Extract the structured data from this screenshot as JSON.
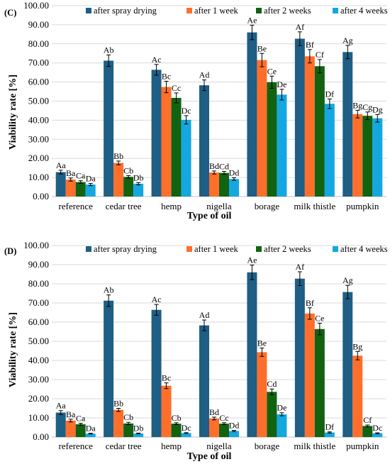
{
  "colors": {
    "after spray drying": "#1f5e85",
    "after 1 week": "#ff6f2b",
    "after 2 weeks": "#116311",
    "after 4 weeks": "#15a7e0"
  },
  "chart_data": [
    {
      "type": "bar",
      "panel": "(C)",
      "xlabel": "Type of oil",
      "ylabel": "Viability rate [%]",
      "ylim": [
        0,
        100
      ],
      "yticks": [
        "0.00",
        "10.00",
        "20.00",
        "30.00",
        "40.00",
        "50.00",
        "60.00",
        "70.00",
        "80.00",
        "90.00",
        "100.00"
      ],
      "grid": true,
      "legend": "top",
      "categories": [
        "reference",
        "cedar tree",
        "hemp",
        "nigella",
        "borage",
        "milk thistle",
        "pumpkin"
      ],
      "series": [
        {
          "name": "after spray drying",
          "values": [
            12.8,
            71.2,
            66.4,
            58.3,
            86.0,
            82.7,
            75.7
          ],
          "errors": [
            1.0,
            3.0,
            2.8,
            2.8,
            3.8,
            3.6,
            3.5
          ],
          "labels": [
            "Aa",
            "Ab",
            "Ac",
            "Ad",
            "Ae",
            "Af",
            "Ag"
          ]
        },
        {
          "name": "after 1 week",
          "values": [
            8.9,
            17.6,
            57.4,
            12.6,
            71.5,
            73.5,
            43.2
          ],
          "errors": [
            0.8,
            1.0,
            3.0,
            0.8,
            3.5,
            3.5,
            2.0
          ],
          "labels": [
            "Ba",
            "Bb",
            "Bc",
            "Bd",
            "Be",
            "Bf",
            "Bg"
          ]
        },
        {
          "name": "after 2 weeks",
          "values": [
            7.6,
            10.3,
            51.7,
            12.4,
            59.9,
            68.3,
            42.3
          ],
          "errors": [
            0.7,
            0.7,
            2.6,
            0.8,
            3.2,
            3.5,
            2.0
          ],
          "labels": [
            "Ca",
            "Cb",
            "Cc",
            "Cd",
            "Ce",
            "Cf",
            "Cg"
          ]
        },
        {
          "name": "after 4 weeks",
          "values": [
            6.3,
            6.7,
            40.2,
            9.2,
            53.4,
            48.6,
            41.0
          ],
          "errors": [
            0.6,
            0.6,
            2.2,
            0.7,
            2.8,
            2.5,
            2.0
          ],
          "labels": [
            "Da",
            "Db",
            "Dc",
            "Dd",
            "De",
            "Df",
            "Dg"
          ]
        }
      ]
    },
    {
      "type": "bar",
      "panel": "(D)",
      "xlabel": "Type of oil",
      "ylabel": "Viability rate [%]",
      "ylim": [
        0,
        100
      ],
      "yticks": [
        "0.00",
        "10.00",
        "20.00",
        "30.00",
        "40.00",
        "50.00",
        "60.00",
        "70.00",
        "80.00",
        "90.00",
        "100.00"
      ],
      "grid": true,
      "legend": "top",
      "categories": [
        "reference",
        "cedar tree",
        "hemp",
        "nigella",
        "borage",
        "milk thistle",
        "pumpkin"
      ],
      "series": [
        {
          "name": "after spray drying",
          "values": [
            12.8,
            71.2,
            66.4,
            58.3,
            86.0,
            82.7,
            75.7
          ],
          "errors": [
            1.0,
            3.0,
            2.8,
            2.8,
            3.8,
            3.6,
            3.5
          ],
          "labels": [
            "Aa",
            "Ab",
            "Ac",
            "Ad",
            "Ae",
            "Af",
            "Ag"
          ]
        },
        {
          "name": "after 1 week",
          "values": [
            8.6,
            14.2,
            26.8,
            9.7,
            44.3,
            64.5,
            42.5
          ],
          "errors": [
            0.7,
            0.8,
            1.5,
            0.7,
            2.2,
            3.0,
            2.2
          ],
          "labels": [
            "Ba",
            "Bb",
            "Bc",
            "Bd",
            "Be",
            "Bf",
            "Bg"
          ]
        },
        {
          "name": "after 2 weeks",
          "values": [
            6.7,
            7.1,
            7.0,
            7.0,
            23.6,
            56.4,
            5.8
          ],
          "errors": [
            0.5,
            0.6,
            0.5,
            0.5,
            1.5,
            3.0,
            0.5
          ],
          "labels": [
            "Ca",
            "Cb",
            "Cb",
            "Cc",
            "Cd",
            "Ce",
            "Cf"
          ]
        },
        {
          "name": "after 4 weeks",
          "values": [
            1.8,
            1.9,
            2.1,
            3.2,
            11.9,
            2.4,
            2.0
          ],
          "errors": [
            0.2,
            0.2,
            0.2,
            0.3,
            0.8,
            0.3,
            0.2
          ],
          "labels": [
            "Da",
            "Db",
            "Dc",
            "Dd",
            "De",
            "Df",
            "Dc"
          ]
        }
      ]
    }
  ]
}
